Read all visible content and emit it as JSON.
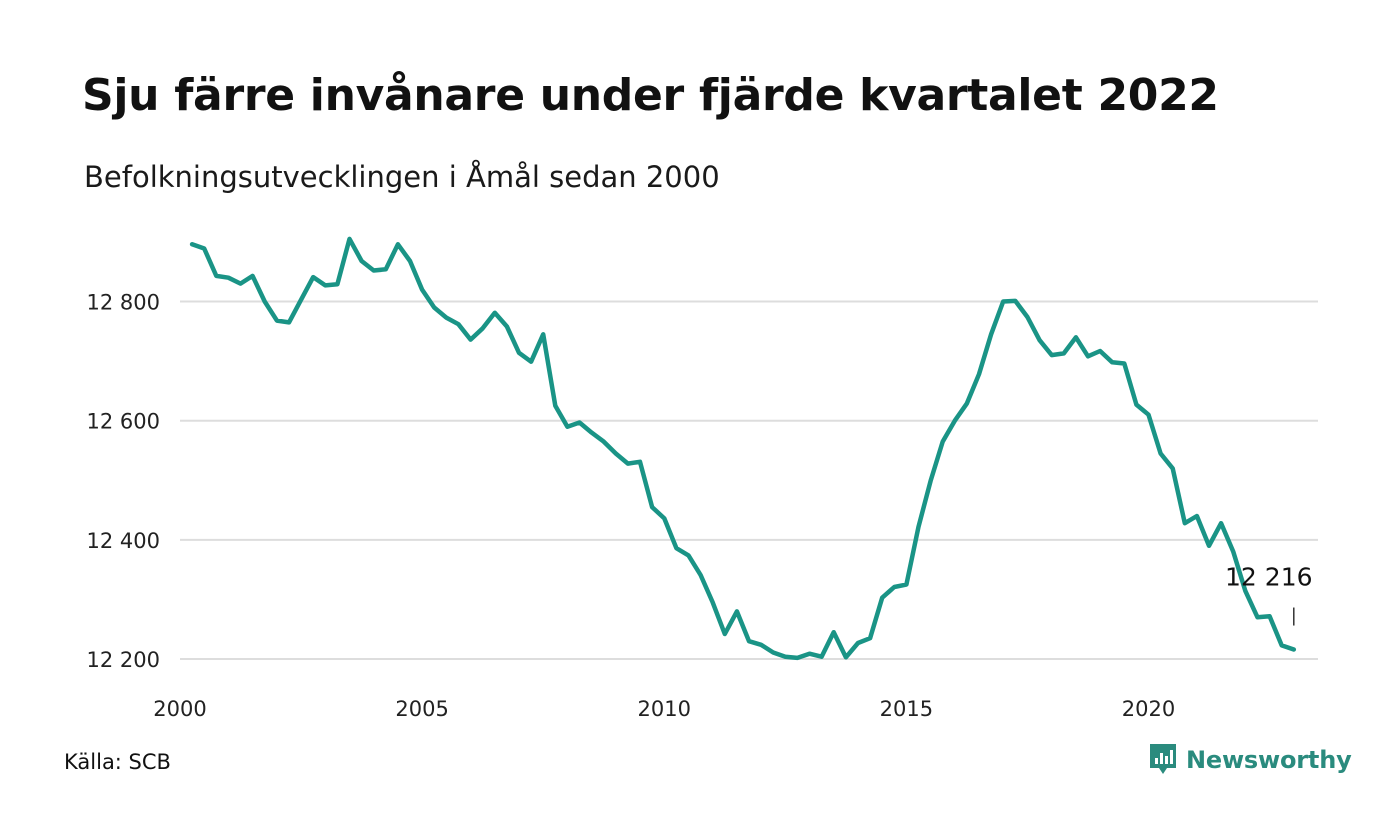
{
  "title": "Sju färre invånare under fjärde kvartalet 2022",
  "subtitle": "Befolkningsutvecklingen i Åmål sedan 2000",
  "source": "Källa: SCB",
  "brand": "Newsworthy",
  "colors": {
    "line": "#1a9486",
    "grid": "#dddddd",
    "brand": "#2a8b7e"
  },
  "chart_data": {
    "type": "line",
    "xlim": [
      2000,
      2023.5
    ],
    "ylim": [
      12185,
      12920
    ],
    "x_ticks": [
      2000,
      2005,
      2010,
      2015,
      2020
    ],
    "x_tick_labels": [
      "2000",
      "2005",
      "2010",
      "2015",
      "2020"
    ],
    "y_ticks": [
      12200,
      12400,
      12600,
      12800
    ],
    "y_tick_labels": [
      "12 200",
      "12 400",
      "12 600",
      "12 800"
    ],
    "grid": "horizontal",
    "end_label": "12 216",
    "series": [
      {
        "x": [
          2000.25,
          2000.5,
          2000.75,
          2001.0,
          2001.25,
          2001.5,
          2001.75,
          2002.0,
          2002.25,
          2002.5,
          2002.75,
          2003.0,
          2003.25,
          2003.5,
          2003.75,
          2004.0,
          2004.25,
          2004.5,
          2004.75,
          2005.0,
          2005.25,
          2005.5,
          2005.75,
          2006.0,
          2006.25,
          2006.5,
          2006.75,
          2007.0,
          2007.25,
          2007.5,
          2007.75,
          2008.0,
          2008.25,
          2008.5,
          2008.75,
          2009.0,
          2009.25,
          2009.5,
          2009.75,
          2010.0,
          2010.25,
          2010.5,
          2010.75,
          2011.0,
          2011.25,
          2011.5,
          2011.75,
          2012.0,
          2012.25,
          2012.5,
          2012.75,
          2013.0,
          2013.25,
          2013.5,
          2013.75,
          2014.0,
          2014.25,
          2014.5,
          2014.75,
          2015.0,
          2015.25,
          2015.5,
          2015.75,
          2016.0,
          2016.25,
          2016.5,
          2016.75,
          2017.0,
          2017.25,
          2017.5,
          2017.75,
          2018.0,
          2018.25,
          2018.5,
          2018.75,
          2019.0,
          2019.25,
          2019.5,
          2019.75,
          2020.0,
          2020.25,
          2020.5,
          2020.75,
          2021.0,
          2021.25,
          2021.5,
          2021.75,
          2022.0,
          2022.25,
          2022.5,
          2022.75,
          2023.0
        ],
        "values": [
          12896,
          12889,
          12843,
          12840,
          12830,
          12843,
          12800,
          12768,
          12765,
          12803,
          12841,
          12827,
          12829,
          12905,
          12868,
          12852,
          12854,
          12896,
          12868,
          12820,
          12790,
          12773,
          12762,
          12736,
          12755,
          12781,
          12758,
          12714,
          12699,
          12745,
          12625,
          12590,
          12597,
          12580,
          12565,
          12545,
          12528,
          12531,
          12455,
          12436,
          12386,
          12374,
          12341,
          12295,
          12242,
          12280,
          12230,
          12224,
          12211,
          12204,
          12202,
          12209,
          12204,
          12245,
          12203,
          12227,
          12235,
          12303,
          12321,
          12325,
          12422,
          12499,
          12565,
          12600,
          12629,
          12678,
          12745,
          12800,
          12801,
          12774,
          12735,
          12710,
          12713,
          12740,
          12708,
          12717,
          12698,
          12696,
          12627,
          12610,
          12545,
          12520,
          12428,
          12440,
          12390,
          12428,
          12380,
          12314,
          12270,
          12272,
          12223,
          12216
        ]
      }
    ]
  }
}
